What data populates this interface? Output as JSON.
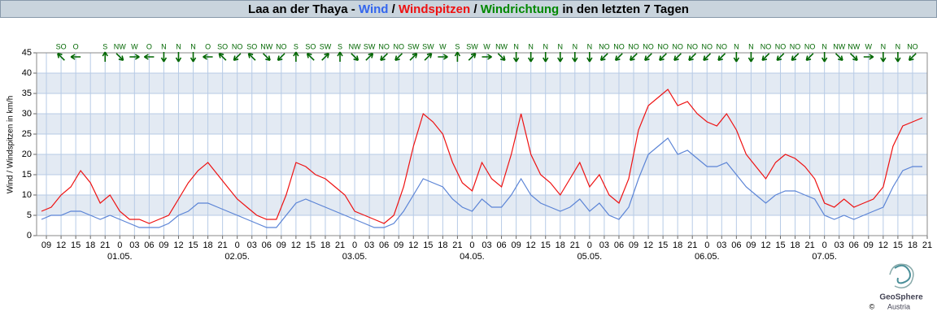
{
  "chart_data": {
    "type": "line",
    "title_prefix": "Laa an der Thaya - ",
    "title_sep": " / ",
    "title_suffix": " in den letzten 7 Tagen",
    "ylabel": "Wind / Windspitzen in km/h",
    "x": [
      -16,
      -14,
      -12,
      -10,
      -8,
      -6,
      -4,
      -2,
      0,
      2,
      4,
      6,
      8,
      10,
      12,
      14,
      16,
      18,
      20,
      22,
      24,
      26,
      28,
      30,
      32,
      34,
      36,
      38,
      40,
      42,
      44,
      46,
      48,
      50,
      52,
      54,
      56,
      58,
      60,
      62,
      64,
      66,
      68,
      70,
      72,
      74,
      76,
      78,
      80,
      82,
      84,
      86,
      88,
      90,
      92,
      94,
      96,
      98,
      100,
      102,
      104,
      106,
      108,
      110,
      112,
      114,
      116,
      118,
      120,
      122,
      124,
      126,
      128,
      130,
      132,
      134,
      136,
      138,
      140,
      142,
      144,
      146,
      148,
      150,
      152,
      154,
      156,
      158,
      160,
      162,
      164
    ],
    "series": [
      {
        "name": "Wind",
        "color": "#5b84d6",
        "values": [
          4,
          5,
          5,
          6,
          6,
          5,
          4,
          5,
          4,
          3,
          2,
          2,
          2,
          3,
          5,
          6,
          8,
          8,
          7,
          6,
          5,
          4,
          3,
          2,
          2,
          5,
          8,
          9,
          8,
          7,
          6,
          5,
          4,
          3,
          2,
          2,
          3,
          6,
          10,
          14,
          13,
          12,
          9,
          7,
          6,
          9,
          7,
          7,
          10,
          14,
          10,
          8,
          7,
          6,
          7,
          9,
          6,
          8,
          5,
          4,
          7,
          14,
          20,
          22,
          24,
          20,
          21,
          19,
          17,
          17,
          18,
          15,
          12,
          10,
          8,
          10,
          11,
          11,
          10,
          9,
          5,
          4,
          5,
          4,
          5,
          6,
          7,
          12,
          16,
          17,
          17
        ]
      },
      {
        "name": "Windspitzen",
        "color": "#ee1111",
        "values": [
          6,
          7,
          10,
          12,
          16,
          13,
          8,
          10,
          6,
          4,
          4,
          3,
          4,
          5,
          9,
          13,
          16,
          18,
          15,
          12,
          9,
          7,
          5,
          4,
          4,
          10,
          18,
          17,
          15,
          14,
          12,
          10,
          6,
          5,
          4,
          3,
          5,
          12,
          22,
          30,
          28,
          25,
          18,
          13,
          11,
          18,
          14,
          12,
          20,
          30,
          20,
          15,
          13,
          10,
          14,
          18,
          12,
          15,
          10,
          8,
          14,
          26,
          32,
          34,
          36,
          32,
          33,
          30,
          28,
          27,
          30,
          26,
          20,
          17,
          14,
          18,
          20,
          19,
          17,
          14,
          8,
          7,
          9,
          7,
          8,
          9,
          12,
          22,
          27,
          28,
          29
        ]
      }
    ],
    "direction": {
      "name": "Windrichtung",
      "color": "#006600",
      "values": [
        {
          "value": -12,
          "label": "SO"
        },
        {
          "value": -9,
          "label": "O"
        },
        {
          "value": -3,
          "label": "S"
        },
        {
          "value": 0,
          "label": "NW"
        },
        {
          "value": 3,
          "label": "W"
        },
        {
          "value": 6,
          "label": "O"
        },
        {
          "value": 9,
          "label": "N"
        },
        {
          "value": 12,
          "label": "N"
        },
        {
          "value": 15,
          "label": "N"
        },
        {
          "value": 18,
          "label": "O"
        },
        {
          "value": 21,
          "label": "SO"
        },
        {
          "value": 24,
          "label": "NO"
        },
        {
          "value": 27,
          "label": "SO"
        },
        {
          "value": 30,
          "label": "NW"
        },
        {
          "value": 33,
          "label": "NO"
        },
        {
          "value": 36,
          "label": "S"
        },
        {
          "value": 39,
          "label": "SO"
        },
        {
          "value": 42,
          "label": "SW"
        },
        {
          "value": 45,
          "label": "S"
        },
        {
          "value": 48,
          "label": "NW"
        },
        {
          "value": 51,
          "label": "SW"
        },
        {
          "value": 54,
          "label": "NO"
        },
        {
          "value": 57,
          "label": "NO"
        },
        {
          "value": 60,
          "label": "SW"
        },
        {
          "value": 63,
          "label": "SW"
        },
        {
          "value": 66,
          "label": "W"
        },
        {
          "value": 69,
          "label": "S"
        },
        {
          "value": 72,
          "label": "SW"
        },
        {
          "value": 75,
          "label": "W"
        },
        {
          "value": 78,
          "label": "NW"
        },
        {
          "value": 81,
          "label": "N"
        },
        {
          "value": 84,
          "label": "N"
        },
        {
          "value": 87,
          "label": "N"
        },
        {
          "value": 90,
          "label": "N"
        },
        {
          "value": 93,
          "label": "N"
        },
        {
          "value": 96,
          "label": "N"
        },
        {
          "value": 99,
          "label": "NO"
        },
        {
          "value": 102,
          "label": "NO"
        },
        {
          "value": 105,
          "label": "NO"
        },
        {
          "value": 108,
          "label": "NO"
        },
        {
          "value": 111,
          "label": "NO"
        },
        {
          "value": 114,
          "label": "NO"
        },
        {
          "value": 117,
          "label": "NO"
        },
        {
          "value": 120,
          "label": "NO"
        },
        {
          "value": 123,
          "label": "NO"
        },
        {
          "value": 126,
          "label": "N"
        },
        {
          "value": 129,
          "label": "N"
        },
        {
          "value": 132,
          "label": "NO"
        },
        {
          "value": 135,
          "label": "NO"
        },
        {
          "value": 138,
          "label": "NO"
        },
        {
          "value": 141,
          "label": "NO"
        },
        {
          "value": 144,
          "label": "N"
        },
        {
          "value": 147,
          "label": "NW"
        },
        {
          "value": 150,
          "label": "NW"
        },
        {
          "value": 153,
          "label": "W"
        },
        {
          "value": 156,
          "label": "N"
        },
        {
          "value": 159,
          "label": "N"
        },
        {
          "value": 162,
          "label": "NO"
        }
      ]
    },
    "xlim": [
      -17,
      165
    ],
    "xticks": [
      {
        "value": -15,
        "label": "09"
      },
      {
        "value": -12,
        "label": "12"
      },
      {
        "value": -9,
        "label": "15"
      },
      {
        "value": -6,
        "label": "18"
      },
      {
        "value": -3,
        "label": "21"
      },
      0,
      {
        "value": 3,
        "label": "03"
      },
      {
        "value": 6,
        "label": "06"
      },
      {
        "value": 9,
        "label": "09"
      },
      {
        "value": 12,
        "label": "12"
      },
      {
        "value": 15,
        "label": "15"
      },
      {
        "value": 18,
        "label": "18"
      },
      {
        "value": 21,
        "label": "21"
      },
      {
        "value": 24,
        "label": "0"
      },
      {
        "value": 27,
        "label": "03"
      },
      {
        "value": 30,
        "label": "06"
      },
      {
        "value": 33,
        "label": "09"
      },
      {
        "value": 36,
        "label": "12"
      },
      {
        "value": 39,
        "label": "15"
      },
      {
        "value": 42,
        "label": "18"
      },
      {
        "value": 45,
        "label": "21"
      },
      {
        "value": 48,
        "label": "0"
      },
      {
        "value": 51,
        "label": "03"
      },
      {
        "value": 54,
        "label": "06"
      },
      {
        "value": 57,
        "label": "09"
      },
      {
        "value": 60,
        "label": "12"
      },
      {
        "value": 63,
        "label": "15"
      },
      {
        "value": 66,
        "label": "18"
      },
      {
        "value": 69,
        "label": "21"
      },
      {
        "value": 72,
        "label": "0"
      },
      {
        "value": 75,
        "label": "03"
      },
      {
        "value": 78,
        "label": "06"
      },
      {
        "value": 81,
        "label": "09"
      },
      {
        "value": 84,
        "label": "12"
      },
      {
        "value": 87,
        "label": "15"
      },
      {
        "value": 90,
        "label": "18"
      },
      {
        "value": 93,
        "label": "21"
      },
      {
        "value": 96,
        "label": "0"
      },
      {
        "value": 99,
        "label": "03"
      },
      {
        "value": 102,
        "label": "06"
      },
      {
        "value": 105,
        "label": "09"
      },
      {
        "value": 108,
        "label": "12"
      },
      {
        "value": 111,
        "label": "15"
      },
      {
        "value": 114,
        "label": "18"
      },
      {
        "value": 117,
        "label": "21"
      },
      {
        "value": 120,
        "label": "0"
      },
      {
        "value": 123,
        "label": "03"
      },
      {
        "value": 126,
        "label": "06"
      },
      {
        "value": 129,
        "label": "09"
      },
      {
        "value": 132,
        "label": "12"
      },
      {
        "value": 135,
        "label": "15"
      },
      {
        "value": 138,
        "label": "18"
      },
      {
        "value": 141,
        "label": "21"
      },
      {
        "value": 144,
        "label": "0"
      },
      {
        "value": 147,
        "label": "03"
      },
      {
        "value": 150,
        "label": "06"
      },
      {
        "value": 153,
        "label": "09"
      },
      {
        "value": 156,
        "label": "12"
      },
      {
        "value": 159,
        "label": "15"
      },
      {
        "value": 162,
        "label": "18"
      },
      {
        "value": 165,
        "label": "21"
      }
    ],
    "date_ticks": [
      {
        "value": 0,
        "label": "01.05."
      },
      {
        "value": 24,
        "label": "02.05."
      },
      {
        "value": 48,
        "label": "03.05."
      },
      {
        "value": 72,
        "label": "04.05."
      },
      {
        "value": 96,
        "label": "05.05."
      },
      {
        "value": 120,
        "label": "06.05."
      },
      {
        "value": 144,
        "label": "07.05."
      }
    ],
    "ylim": [
      0,
      45
    ],
    "yticks": [
      0,
      5,
      10,
      15,
      20,
      25,
      30,
      35,
      40,
      45
    ],
    "grid": true,
    "logo": {
      "name": "GeoSphere",
      "sub": "Austria",
      "copyright": "©"
    }
  }
}
